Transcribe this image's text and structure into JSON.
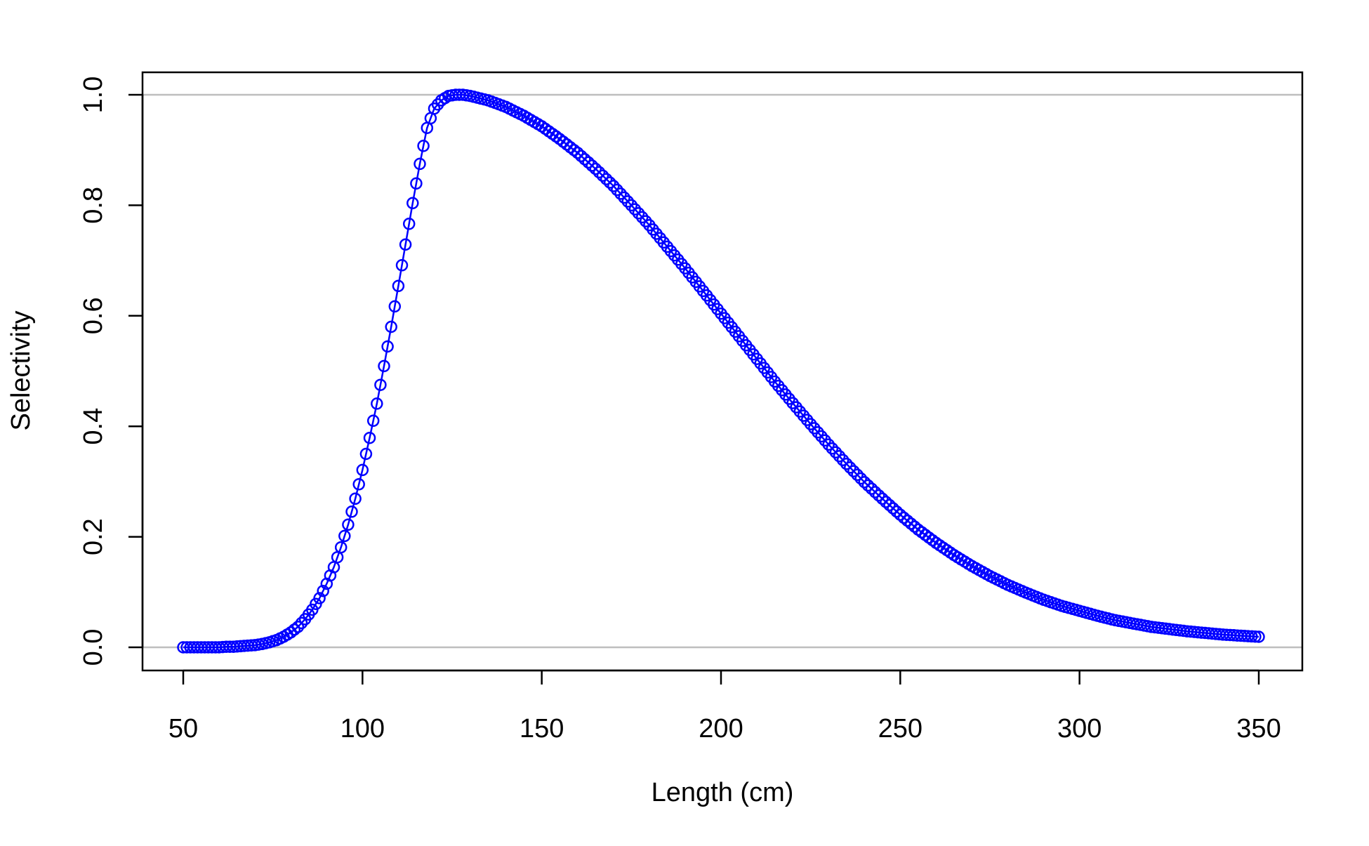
{
  "chart_data": {
    "type": "scatter",
    "title": "",
    "xlabel": "Length (cm)",
    "ylabel": "Selectivity",
    "xlim": [
      50,
      350
    ],
    "ylim": [
      0,
      1
    ],
    "x_ticks": [
      "50",
      "100",
      "150",
      "200",
      "250",
      "300",
      "350"
    ],
    "y_ticks": [
      "0.0",
      "0.2",
      "0.4",
      "0.6",
      "0.8",
      "1.0"
    ],
    "reference_lines_y": [
      0,
      1
    ],
    "grid": false,
    "marker": "open-circle",
    "line_connected": true,
    "series": [
      {
        "color": "#0000ff",
        "x": [
          50,
          52,
          54,
          56,
          58,
          60,
          62,
          64,
          66,
          68,
          70,
          72,
          74,
          76,
          78,
          80,
          82,
          84,
          86,
          88,
          90,
          92,
          94,
          96,
          98,
          100,
          102,
          104,
          106,
          108,
          110,
          112,
          114,
          116,
          118,
          120,
          122,
          124,
          126,
          128,
          130,
          135,
          140,
          145,
          150,
          155,
          160,
          165,
          170,
          175,
          180,
          185,
          190,
          195,
          200,
          205,
          210,
          215,
          220,
          225,
          230,
          235,
          240,
          245,
          250,
          255,
          260,
          265,
          270,
          275,
          280,
          285,
          290,
          295,
          300,
          305,
          310,
          315,
          320,
          325,
          330,
          335,
          340,
          345,
          350
        ],
        "y": [
          0.0,
          0.0,
          0.0,
          0.0,
          0.0,
          0.0,
          0.001,
          0.001,
          0.002,
          0.003,
          0.004,
          0.006,
          0.009,
          0.013,
          0.019,
          0.027,
          0.037,
          0.051,
          0.068,
          0.089,
          0.115,
          0.145,
          0.181,
          0.222,
          0.269,
          0.321,
          0.379,
          0.441,
          0.509,
          0.58,
          0.654,
          0.729,
          0.804,
          0.875,
          0.94,
          0.975,
          0.99,
          0.998,
          1.0,
          1.0,
          0.998,
          0.99,
          0.978,
          0.962,
          0.943,
          0.92,
          0.895,
          0.866,
          0.835,
          0.8,
          0.764,
          0.725,
          0.686,
          0.645,
          0.604,
          0.563,
          0.522,
          0.481,
          0.442,
          0.404,
          0.367,
          0.332,
          0.299,
          0.269,
          0.24,
          0.213,
          0.189,
          0.167,
          0.147,
          0.129,
          0.113,
          0.099,
          0.086,
          0.075,
          0.066,
          0.057,
          0.049,
          0.043,
          0.037,
          0.033,
          0.029,
          0.026,
          0.023,
          0.021,
          0.019
        ]
      }
    ]
  }
}
